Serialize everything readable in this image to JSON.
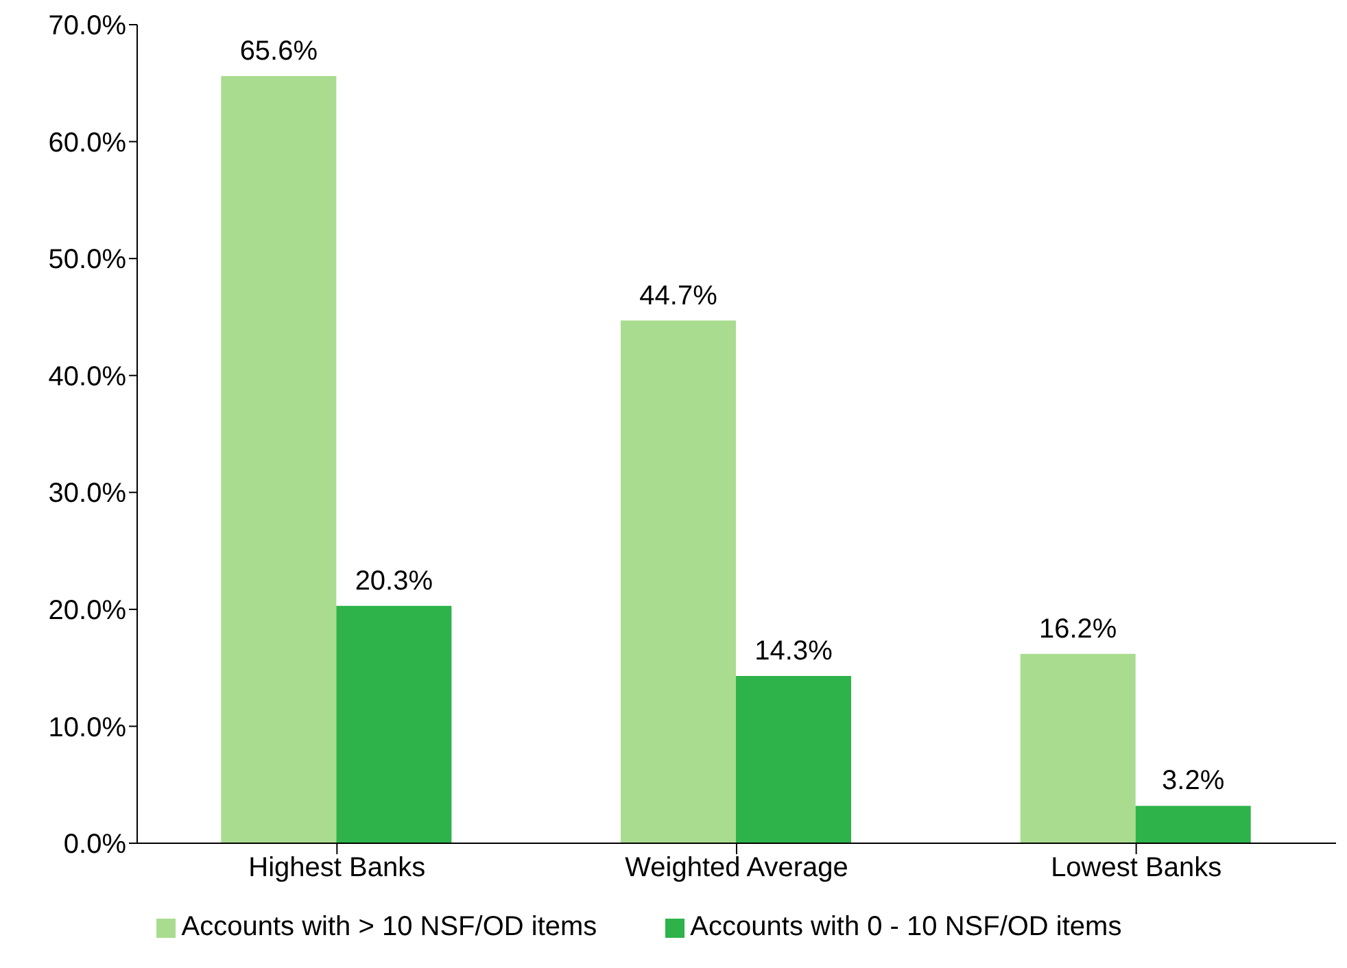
{
  "chart_data": {
    "type": "bar",
    "categories": [
      "Highest Banks",
      "Weighted Average",
      "Lowest Banks"
    ],
    "series": [
      {
        "name": "Accounts with > 10 NSF/OD items",
        "color": "#a9dc8f",
        "values": [
          65.6,
          44.7,
          16.2
        ],
        "value_labels": [
          "65.6%",
          "44.7%",
          "16.2%"
        ]
      },
      {
        "name": "Accounts with 0 - 10 NSF/OD items",
        "color": "#2db34a",
        "values": [
          20.3,
          14.3,
          3.2
        ],
        "value_labels": [
          "20.3%",
          "14.3%",
          "3.2%"
        ]
      }
    ],
    "ylim": [
      0,
      70
    ],
    "yticks": [
      {
        "value": 0,
        "label": "0.0%"
      },
      {
        "value": 10,
        "label": "10.0%"
      },
      {
        "value": 20,
        "label": "20.0%"
      },
      {
        "value": 30,
        "label": "30.0%"
      },
      {
        "value": 40,
        "label": "40.0%"
      },
      {
        "value": 50,
        "label": "50.0%"
      },
      {
        "value": 60,
        "label": "60.0%"
      },
      {
        "value": 70,
        "label": "70.0%"
      }
    ],
    "grid": false,
    "legend": "bottom"
  }
}
